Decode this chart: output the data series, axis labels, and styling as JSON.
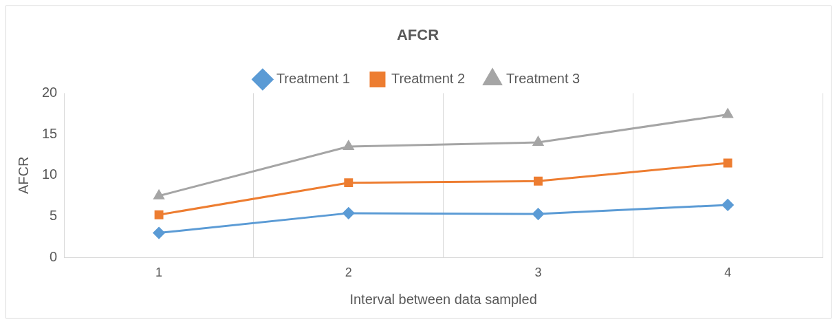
{
  "chart_data": {
    "type": "line",
    "title": "AFCR",
    "xlabel": "Interval between data sampled",
    "ylabel": "AFCR",
    "categories": [
      "1",
      "2",
      "3",
      "4"
    ],
    "series": [
      {
        "name": "Treatment 1",
        "color": "#5b9bd5",
        "marker": "diamond",
        "values": [
          3.0,
          5.4,
          5.3,
          6.4
        ]
      },
      {
        "name": "Treatment 2",
        "color": "#ed7d31",
        "marker": "square",
        "values": [
          5.2,
          9.1,
          9.3,
          11.5
        ]
      },
      {
        "name": "Treatment 3",
        "color": "#a5a5a5",
        "marker": "triangle",
        "values": [
          7.5,
          13.5,
          14.0,
          17.4
        ]
      }
    ],
    "ylim": [
      0,
      20
    ],
    "yticks": [
      0,
      5,
      10,
      15,
      20
    ],
    "grid": "x",
    "legend": "top"
  }
}
